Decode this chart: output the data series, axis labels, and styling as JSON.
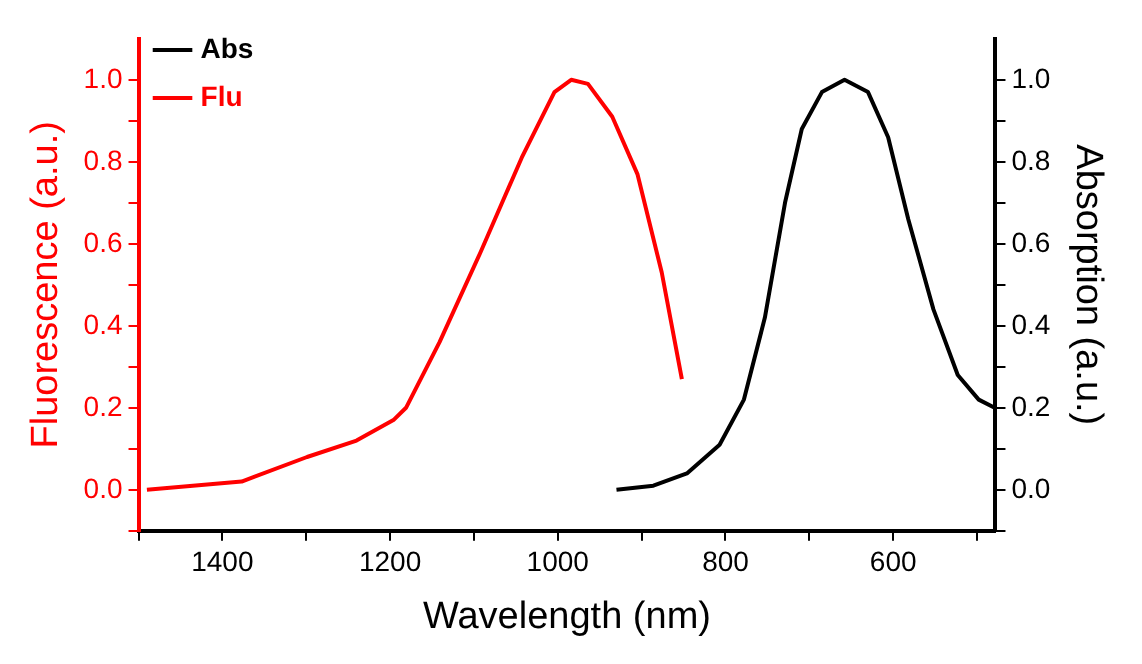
{
  "chart_data": {
    "type": "line",
    "xlabel": "Wavelength (nm)",
    "ylabel": "Fluorescence (a.u.)",
    "y2label": "Absorption (a.u.)",
    "xlim": [
      1500,
      478
    ],
    "xticks": [
      {
        "value": 1500,
        "label": null
      },
      1400,
      {
        "value": 1300,
        "label": null
      },
      1200,
      {
        "value": 1100,
        "label": null
      },
      1000,
      {
        "value": 900,
        "label": null
      },
      800,
      {
        "value": 700,
        "label": null
      },
      600,
      {
        "value": 500,
        "label": null
      }
    ],
    "ylim": [
      -0.1,
      1.1
    ],
    "yticks": [
      {
        "value": -0.1,
        "label": null
      },
      {
        "value": 0,
        "label": "0.0"
      },
      {
        "value": 0.1,
        "label": null
      },
      0.2,
      {
        "value": 0.3,
        "label": null
      },
      0.4,
      {
        "value": 0.5,
        "label": null
      },
      0.6,
      {
        "value": 0.7,
        "label": null
      },
      0.8,
      {
        "value": 0.9,
        "label": null
      },
      {
        "value": 1,
        "label": "1.0"
      }
    ],
    "y2lim": [
      -0.1,
      1.1
    ],
    "y2ticks": [
      {
        "value": -0.1,
        "label": null
      },
      {
        "value": 0,
        "label": "0.0"
      },
      {
        "value": 0.1,
        "label": null
      },
      0.2,
      {
        "value": 0.3,
        "label": null
      },
      0.4,
      {
        "value": 0.5,
        "label": null
      },
      0.6,
      {
        "value": 0.7,
        "label": null
      },
      0.8,
      {
        "value": 0.9,
        "label": null
      },
      {
        "value": 1,
        "label": "1.0"
      }
    ],
    "grid": false,
    "legend": "top left",
    "marker": "none",
    "line_style": "solid",
    "series": [
      {
        "name": "Abs",
        "color": "#000000",
        "axis": "y2",
        "x": [
          930,
          886,
          846,
          807,
          778,
          753,
          729,
          709,
          685,
          658,
          630,
          606,
          582,
          552,
          523,
          498,
          479
        ],
        "values": [
          0,
          0.01,
          0.04,
          0.11,
          0.22,
          0.42,
          0.7,
          0.88,
          0.97,
          1.0,
          0.97,
          0.86,
          0.66,
          0.44,
          0.28,
          0.22,
          0.2
        ]
      },
      {
        "name": "Flu",
        "color": "#ff0000",
        "x": [
          1490,
          1377,
          1299,
          1240,
          1196,
          1181,
          1141,
          1092,
          1043,
          1004,
          984,
          964,
          935,
          905,
          876,
          852
        ],
        "values": [
          0,
          0.02,
          0.08,
          0.12,
          0.17,
          0.2,
          0.36,
          0.58,
          0.81,
          0.97,
          1.0,
          0.99,
          0.91,
          0.77,
          0.53,
          0.27
        ]
      }
    ]
  }
}
